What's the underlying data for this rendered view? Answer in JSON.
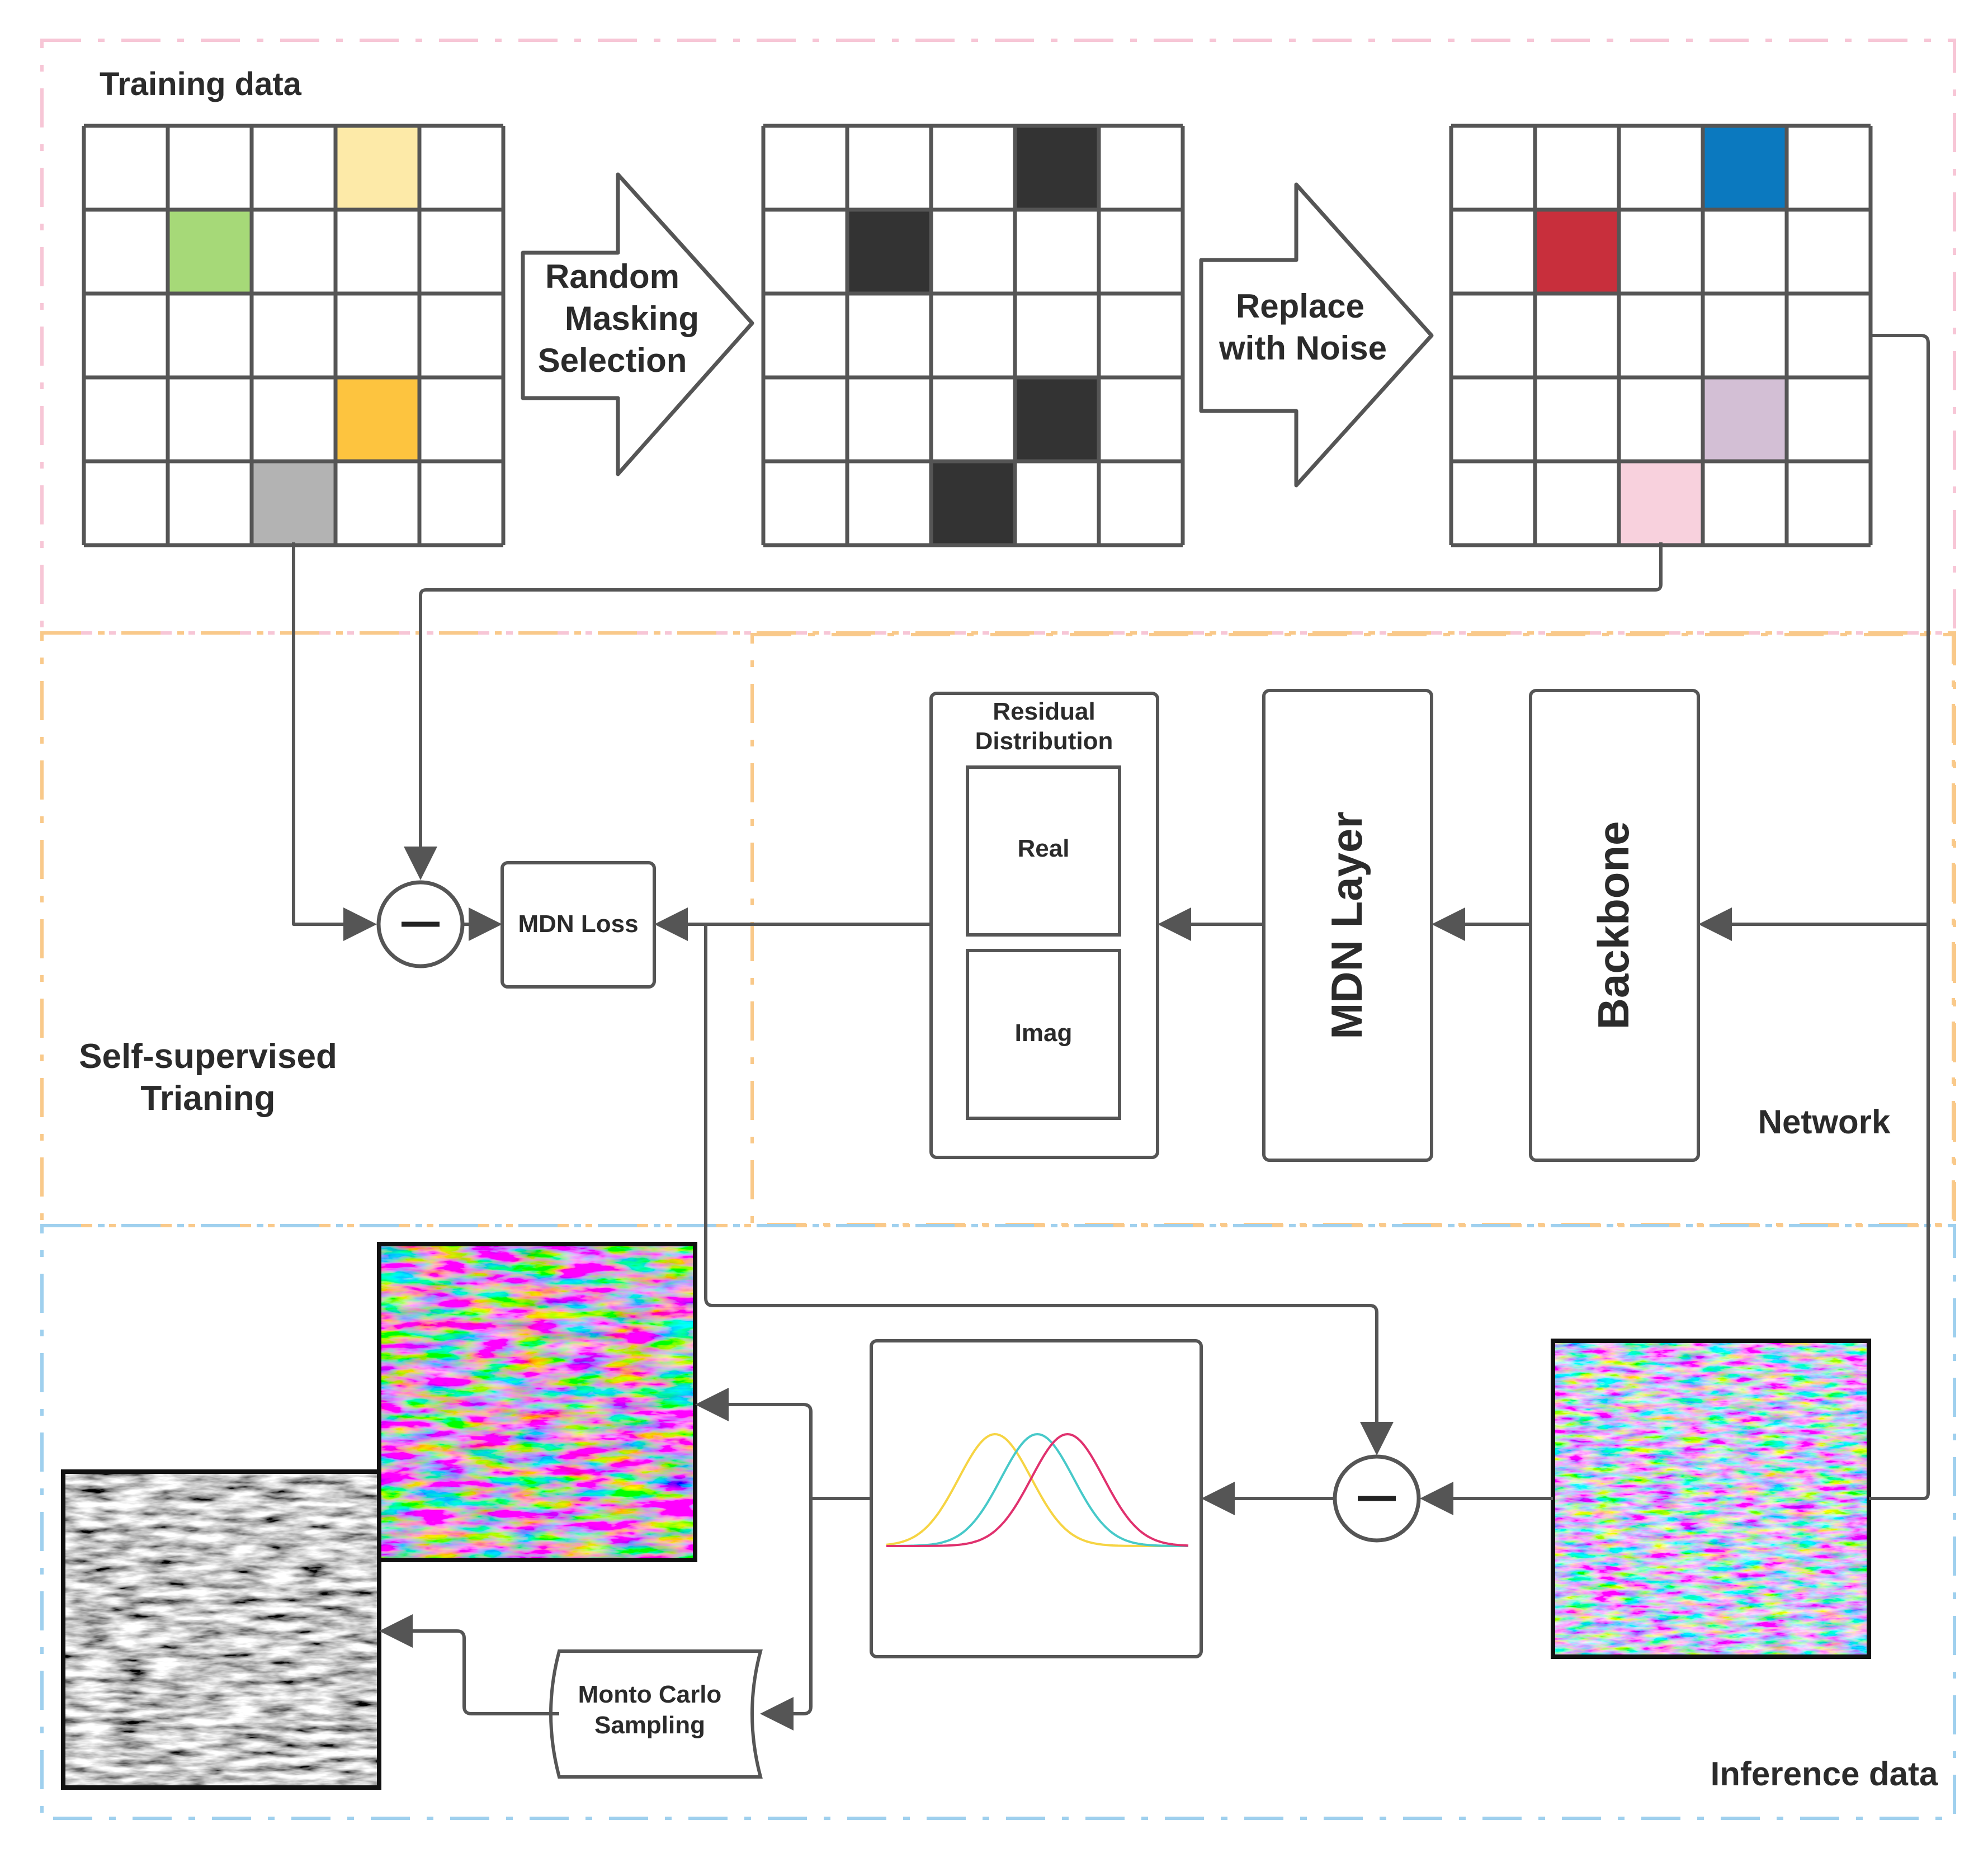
{
  "regions": {
    "training": {
      "label": "Training data",
      "color": "#f7c6d6"
    },
    "self_supervised": {
      "label_line1": "Self-supervised",
      "label_line2": "Trianing",
      "color": "#f9c98a"
    },
    "network": {
      "label": "Network",
      "color": "#f9c98a"
    },
    "inference": {
      "label": "Inference data",
      "color": "#9fd0ee"
    }
  },
  "grids": {
    "training_data": {
      "cells": [
        {
          "row": 0,
          "col": 3,
          "color": "#fdeaa8"
        },
        {
          "row": 1,
          "col": 1,
          "color": "#a6d978"
        },
        {
          "row": 3,
          "col": 3,
          "color": "#fdc43f"
        },
        {
          "row": 4,
          "col": 2,
          "color": "#b3b3b3"
        }
      ]
    },
    "masked": {
      "cells": [
        {
          "row": 0,
          "col": 3,
          "color": "#333333"
        },
        {
          "row": 1,
          "col": 1,
          "color": "#333333"
        },
        {
          "row": 3,
          "col": 3,
          "color": "#333333"
        },
        {
          "row": 4,
          "col": 2,
          "color": "#333333"
        }
      ]
    },
    "noised": {
      "cells": [
        {
          "row": 0,
          "col": 3,
          "color": "#0b79bf"
        },
        {
          "row": 1,
          "col": 1,
          "color": "#c82f3c"
        },
        {
          "row": 3,
          "col": 3,
          "color": "#d3bfd5"
        },
        {
          "row": 4,
          "col": 2,
          "color": "#f8d1dd"
        }
      ]
    }
  },
  "arrows": {
    "random_masking": {
      "line1": "Random",
      "line2": "Masking",
      "line3": "Selection"
    },
    "replace_noise": {
      "line1": "Replace",
      "line2": "with  Noise"
    }
  },
  "network": {
    "residual": {
      "title1": "Residual",
      "title2": "Distribution",
      "real": "Real",
      "imag": "Imag"
    },
    "mdn_layer": "MDN Layer",
    "backbone": "Backbone"
  },
  "loss": {
    "label": "MDN Loss"
  },
  "operators": {
    "minus": "—"
  },
  "sampling": {
    "line1": "Monto Carlo",
    "line2": "Sampling"
  },
  "distribution_curves": [
    {
      "color": "#f6d443",
      "mean": 0.36
    },
    {
      "color": "#47c9c9",
      "mean": 0.5
    },
    {
      "color": "#e0316e",
      "mean": 0.6
    }
  ]
}
